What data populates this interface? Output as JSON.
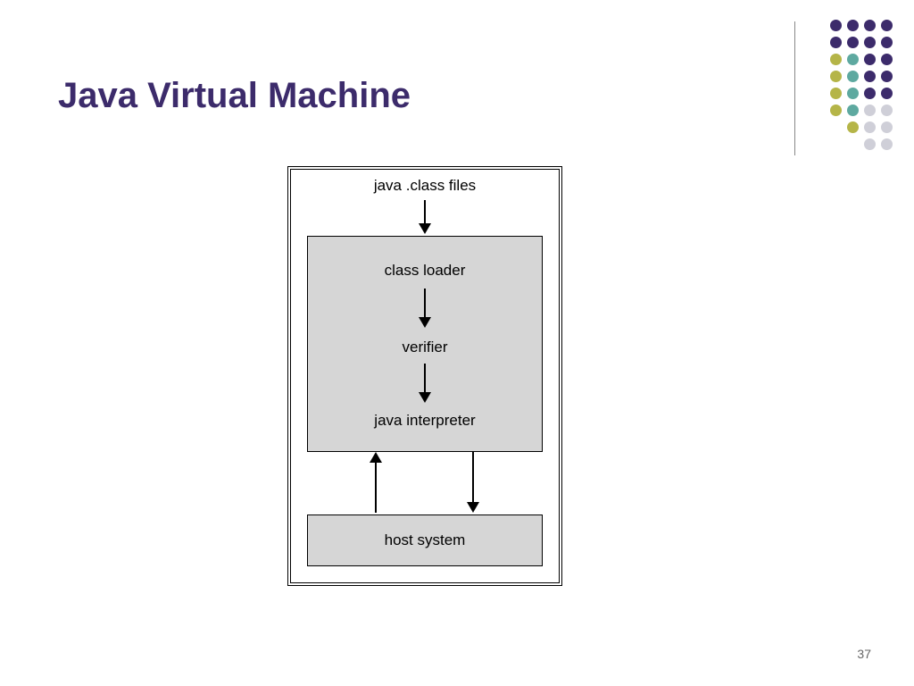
{
  "title": "Java Virtual Machine",
  "title_color": "#3c2b6b",
  "title_fontsize": 40,
  "page_number": "37",
  "background_color": "#ffffff",
  "dot_grid": {
    "colors": {
      "purple": "#3c2b6b",
      "olive": "#b5b548",
      "teal": "#5ea9a0",
      "light": "#cfcfd8"
    },
    "rows": [
      [
        "purple",
        "purple",
        "purple",
        "purple"
      ],
      [
        "purple",
        "purple",
        "purple",
        "purple"
      ],
      [
        "olive",
        "teal",
        "purple",
        "purple"
      ],
      [
        "olive",
        "teal",
        "purple",
        "purple"
      ],
      [
        "olive",
        "teal",
        "purple",
        "purple"
      ],
      [
        "olive",
        "teal",
        "light",
        "light"
      ],
      [
        "olive",
        "light",
        "light"
      ],
      [
        "light",
        "light"
      ]
    ],
    "dot_size": 13,
    "gap": 6
  },
  "diagram": {
    "type": "flowchart",
    "outer_border": "double",
    "outer_border_color": "#000000",
    "box_fill": "#d6d6d6",
    "box_border_color": "#000000",
    "label_fontsize": 17,
    "labels": {
      "top": "java .class files",
      "class_loader": "class loader",
      "verifier": "verifier",
      "interpreter": "java interpreter",
      "host": "host system"
    },
    "arrows": [
      {
        "from": "top",
        "to": "class_loader",
        "direction": "down"
      },
      {
        "from": "class_loader",
        "to": "verifier",
        "direction": "down"
      },
      {
        "from": "verifier",
        "to": "interpreter",
        "direction": "down"
      },
      {
        "from": "interpreter",
        "to": "host",
        "direction": "down",
        "side": "right"
      },
      {
        "from": "host",
        "to": "interpreter",
        "direction": "up",
        "side": "left"
      }
    ],
    "arrow_color": "#000000"
  }
}
